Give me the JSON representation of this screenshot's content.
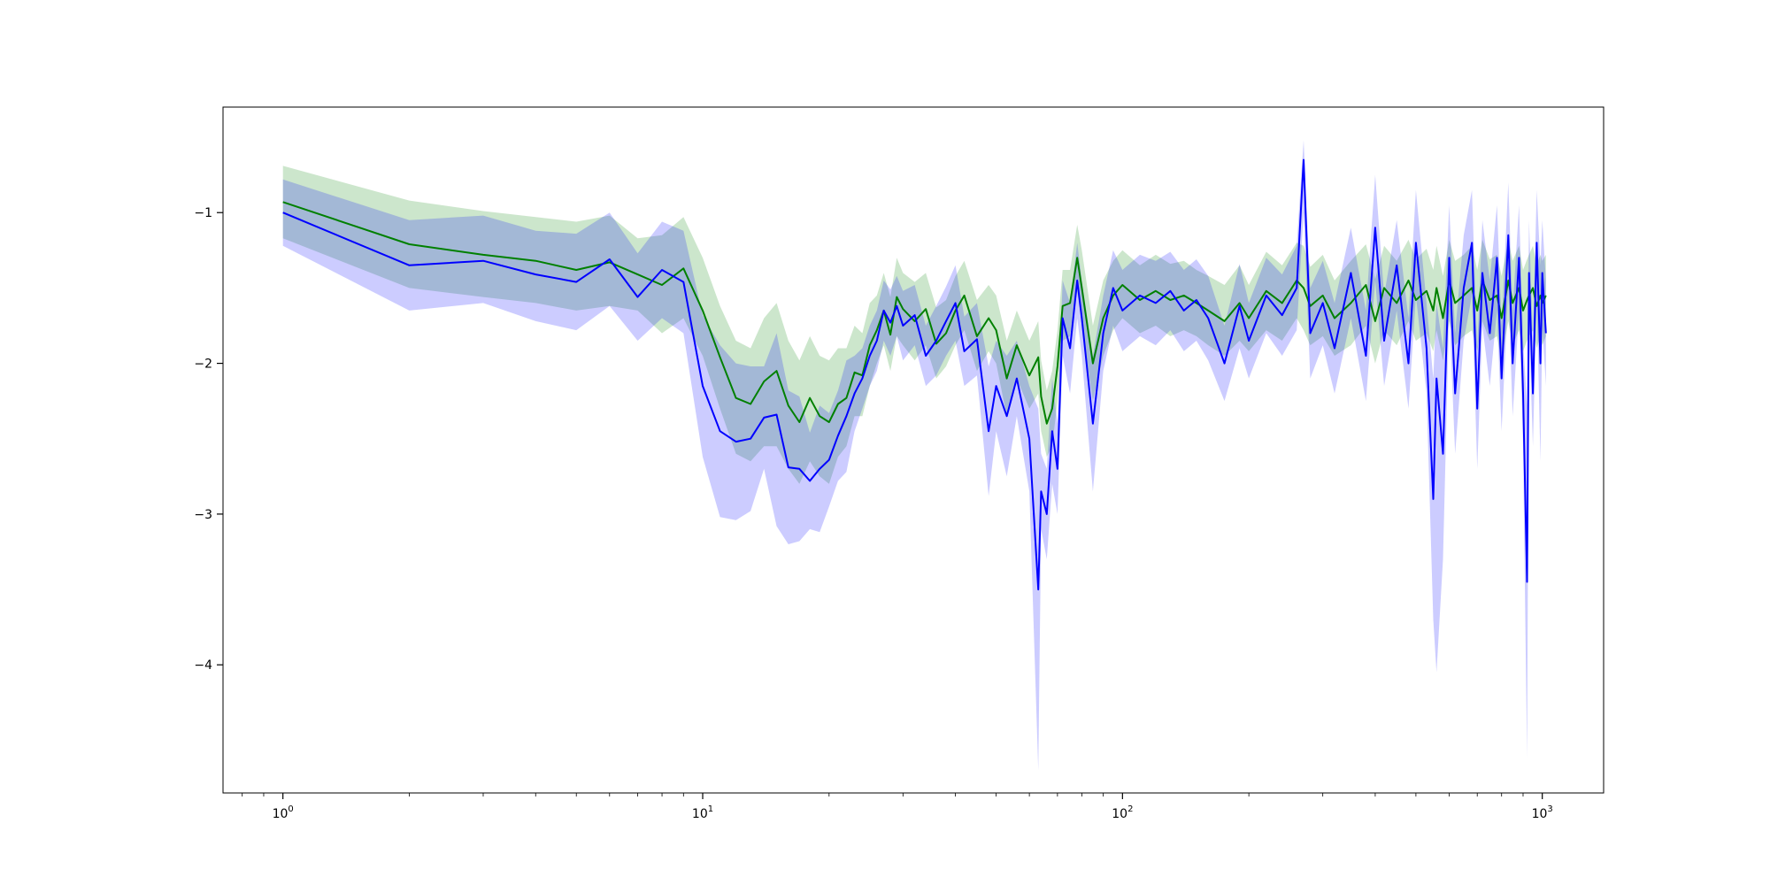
{
  "chart_data": {
    "type": "line",
    "title": "",
    "xlabel": "",
    "ylabel": "",
    "xscale": "log",
    "xlim": [
      0.72,
      1400
    ],
    "ylim": [
      -4.85,
      -0.3
    ],
    "grid": false,
    "legend": "none",
    "x_ticks": [
      {
        "value": 1,
        "base": "10",
        "exp": "0"
      },
      {
        "value": 10,
        "base": "10",
        "exp": "1"
      },
      {
        "value": 100,
        "base": "10",
        "exp": "2"
      },
      {
        "value": 1000,
        "base": "10",
        "exp": "3"
      }
    ],
    "y_ticks": [
      {
        "value": -1,
        "label": "−1"
      },
      {
        "value": -2,
        "label": "−2"
      },
      {
        "value": -3,
        "label": "−3"
      },
      {
        "value": -4,
        "label": "−4"
      }
    ],
    "x": [
      1,
      2,
      3,
      4,
      5,
      6,
      7,
      8,
      9,
      10,
      11,
      12,
      13,
      14,
      15,
      16,
      17,
      18,
      19,
      20,
      21,
      22,
      23,
      24,
      25,
      26,
      27,
      28,
      29,
      30,
      32,
      34,
      36,
      38,
      40,
      42,
      45,
      48,
      50,
      53,
      56,
      60,
      63,
      64,
      66,
      68,
      70,
      72,
      75,
      78,
      80,
      85,
      90,
      95,
      100,
      110,
      120,
      130,
      140,
      150,
      160,
      175,
      190,
      200,
      220,
      240,
      260,
      270,
      280,
      300,
      320,
      350,
      380,
      400,
      420,
      450,
      480,
      500,
      530,
      550,
      560,
      580,
      600,
      620,
      650,
      680,
      700,
      720,
      750,
      780,
      800,
      830,
      850,
      880,
      900,
      920,
      930,
      950,
      970,
      990,
      1000,
      1020
    ],
    "series": [
      {
        "color": "#008000",
        "band_color": "#008000",
        "values": [
          -0.93,
          -1.21,
          -1.28,
          -1.32,
          -1.38,
          -1.33,
          -1.41,
          -1.48,
          -1.37,
          -1.65,
          -1.96,
          -2.23,
          -2.27,
          -2.12,
          -2.05,
          -2.28,
          -2.39,
          -2.23,
          -2.35,
          -2.39,
          -2.27,
          -2.23,
          -2.06,
          -2.08,
          -1.88,
          -1.78,
          -1.65,
          -1.81,
          -1.56,
          -1.64,
          -1.72,
          -1.64,
          -1.87,
          -1.8,
          -1.65,
          -1.55,
          -1.82,
          -1.7,
          -1.78,
          -2.1,
          -1.88,
          -2.08,
          -1.96,
          -2.22,
          -2.4,
          -2.3,
          -2.02,
          -1.62,
          -1.6,
          -1.3,
          -1.5,
          -2.0,
          -1.7,
          -1.55,
          -1.48,
          -1.58,
          -1.52,
          -1.58,
          -1.55,
          -1.6,
          -1.65,
          -1.72,
          -1.6,
          -1.7,
          -1.52,
          -1.6,
          -1.45,
          -1.5,
          -1.62,
          -1.55,
          -1.7,
          -1.6,
          -1.48,
          -1.72,
          -1.5,
          -1.6,
          -1.45,
          -1.58,
          -1.52,
          -1.65,
          -1.5,
          -1.7,
          -1.45,
          -1.6,
          -1.55,
          -1.5,
          -1.65,
          -1.45,
          -1.58,
          -1.55,
          -1.7,
          -1.45,
          -1.6,
          -1.5,
          -1.65,
          -1.58,
          -1.55,
          -1.5,
          -1.62,
          -1.55,
          -1.6,
          -1.55
        ],
        "lower": [
          -1.17,
          -1.5,
          -1.56,
          -1.6,
          -1.65,
          -1.62,
          -1.65,
          -1.8,
          -1.7,
          -1.95,
          -2.3,
          -2.6,
          -2.65,
          -2.55,
          -2.55,
          -2.7,
          -2.8,
          -2.65,
          -2.75,
          -2.8,
          -2.62,
          -2.55,
          -2.35,
          -2.35,
          -2.15,
          -2.0,
          -1.88,
          -2.05,
          -1.82,
          -1.88,
          -1.98,
          -1.88,
          -2.1,
          -2.02,
          -1.88,
          -1.78,
          -2.05,
          -1.92,
          -2.0,
          -2.35,
          -2.1,
          -2.3,
          -2.2,
          -2.45,
          -2.62,
          -2.55,
          -2.25,
          -1.85,
          -1.82,
          -1.52,
          -1.75,
          -2.25,
          -1.95,
          -1.78,
          -1.7,
          -1.8,
          -1.75,
          -1.82,
          -1.78,
          -1.82,
          -1.88,
          -1.95,
          -1.85,
          -1.92,
          -1.78,
          -1.85,
          -1.7,
          -1.78,
          -1.88,
          -1.82,
          -1.95,
          -1.88,
          -1.75,
          -2.0,
          -1.78,
          -1.88,
          -1.72,
          -1.85,
          -1.8,
          -1.92,
          -1.78,
          -1.98,
          -1.72,
          -1.88,
          -1.82,
          -1.78,
          -1.92,
          -1.72,
          -1.85,
          -1.82,
          -1.98,
          -1.72,
          -1.88,
          -1.78,
          -1.92,
          -1.85,
          -1.82,
          -1.78,
          -1.9,
          -1.82,
          -1.88,
          -1.82
        ],
        "upper": [
          -0.69,
          -0.92,
          -0.99,
          -1.03,
          -1.06,
          -1.02,
          -1.17,
          -1.15,
          -1.03,
          -1.3,
          -1.62,
          -1.85,
          -1.9,
          -1.7,
          -1.6,
          -1.85,
          -1.98,
          -1.82,
          -1.95,
          -1.98,
          -1.9,
          -1.9,
          -1.75,
          -1.8,
          -1.6,
          -1.55,
          -1.4,
          -1.56,
          -1.3,
          -1.4,
          -1.46,
          -1.4,
          -1.63,
          -1.58,
          -1.42,
          -1.32,
          -1.58,
          -1.48,
          -1.55,
          -1.85,
          -1.65,
          -1.85,
          -1.72,
          -1.98,
          -2.18,
          -2.05,
          -1.78,
          -1.38,
          -1.38,
          -1.08,
          -1.25,
          -1.75,
          -1.45,
          -1.32,
          -1.25,
          -1.35,
          -1.28,
          -1.34,
          -1.32,
          -1.38,
          -1.42,
          -1.48,
          -1.35,
          -1.48,
          -1.26,
          -1.35,
          -1.2,
          -1.22,
          -1.36,
          -1.28,
          -1.45,
          -1.32,
          -1.21,
          -1.44,
          -1.22,
          -1.32,
          -1.18,
          -1.31,
          -1.24,
          -1.38,
          -1.22,
          -1.42,
          -1.18,
          -1.32,
          -1.28,
          -1.22,
          -1.38,
          -1.18,
          -1.31,
          -1.28,
          -1.42,
          -1.18,
          -1.32,
          -1.22,
          -1.38,
          -1.31,
          -1.28,
          -1.22,
          -1.34,
          -1.28,
          -1.32,
          -1.28
        ]
      },
      {
        "color": "#0000ff",
        "band_color": "#0000ff",
        "values": [
          -1.0,
          -1.35,
          -1.32,
          -1.41,
          -1.46,
          -1.31,
          -1.56,
          -1.38,
          -1.46,
          -2.15,
          -2.45,
          -2.52,
          -2.5,
          -2.36,
          -2.34,
          -2.69,
          -2.7,
          -2.78,
          -2.7,
          -2.64,
          -2.48,
          -2.35,
          -2.2,
          -2.1,
          -1.95,
          -1.85,
          -1.65,
          -1.73,
          -1.62,
          -1.75,
          -1.68,
          -1.95,
          -1.85,
          -1.72,
          -1.6,
          -1.92,
          -1.84,
          -2.45,
          -2.15,
          -2.35,
          -2.1,
          -2.5,
          -3.5,
          -2.85,
          -3.0,
          -2.45,
          -2.7,
          -1.7,
          -1.9,
          -1.45,
          -1.7,
          -2.4,
          -1.8,
          -1.5,
          -1.65,
          -1.55,
          -1.6,
          -1.52,
          -1.65,
          -1.58,
          -1.7,
          -2.0,
          -1.62,
          -1.85,
          -1.55,
          -1.68,
          -1.5,
          -0.65,
          -1.8,
          -1.6,
          -1.9,
          -1.4,
          -1.95,
          -1.1,
          -1.85,
          -1.35,
          -2.0,
          -1.2,
          -1.9,
          -2.9,
          -2.1,
          -2.6,
          -1.3,
          -2.2,
          -1.5,
          -1.2,
          -2.3,
          -1.4,
          -1.8,
          -1.3,
          -2.1,
          -1.15,
          -2.0,
          -1.3,
          -2.2,
          -3.45,
          -1.4,
          -2.2,
          -1.2,
          -2.0,
          -1.4,
          -1.8
        ],
        "lower": [
          -1.22,
          -1.65,
          -1.6,
          -1.72,
          -1.78,
          -1.62,
          -1.85,
          -1.7,
          -1.8,
          -2.62,
          -3.02,
          -3.04,
          -2.98,
          -2.7,
          -3.08,
          -3.2,
          -3.18,
          -3.1,
          -3.12,
          -2.95,
          -2.78,
          -2.72,
          -2.45,
          -2.3,
          -2.15,
          -2.05,
          -1.85,
          -1.95,
          -1.82,
          -1.98,
          -1.88,
          -2.15,
          -2.08,
          -1.95,
          -1.85,
          -2.15,
          -2.08,
          -2.88,
          -2.45,
          -2.75,
          -2.35,
          -2.85,
          -4.7,
          -3.1,
          -3.3,
          -2.8,
          -3.0,
          -1.95,
          -2.2,
          -1.7,
          -1.95,
          -2.85,
          -2.05,
          -1.75,
          -1.92,
          -1.82,
          -1.88,
          -1.78,
          -1.92,
          -1.85,
          -1.98,
          -2.25,
          -1.9,
          -2.1,
          -1.8,
          -1.95,
          -1.78,
          -1.0,
          -2.1,
          -1.88,
          -2.2,
          -1.7,
          -2.25,
          -1.45,
          -2.15,
          -1.65,
          -2.3,
          -1.55,
          -2.2,
          -3.7,
          -4.05,
          -3.3,
          -1.65,
          -2.6,
          -1.85,
          -1.55,
          -2.7,
          -1.75,
          -2.15,
          -1.65,
          -2.45,
          -1.5,
          -2.35,
          -1.65,
          -2.55,
          -4.62,
          -1.75,
          -2.55,
          -1.55,
          -2.65,
          -1.75,
          -2.15
        ],
        "upper": [
          -0.78,
          -1.05,
          -1.02,
          -1.12,
          -1.14,
          -1.0,
          -1.27,
          -1.06,
          -1.12,
          -1.68,
          -1.88,
          -2.0,
          -2.02,
          -2.02,
          -1.8,
          -2.18,
          -2.22,
          -2.46,
          -2.28,
          -2.33,
          -2.18,
          -1.98,
          -1.95,
          -1.9,
          -1.75,
          -1.65,
          -1.45,
          -1.51,
          -1.42,
          -1.52,
          -1.48,
          -1.75,
          -1.62,
          -1.49,
          -1.35,
          -1.69,
          -1.6,
          -2.02,
          -1.85,
          -1.95,
          -1.85,
          -2.15,
          -2.3,
          -2.6,
          -2.7,
          -2.1,
          -2.4,
          -1.45,
          -1.6,
          -1.2,
          -1.45,
          -1.95,
          -1.55,
          -1.25,
          -1.38,
          -1.28,
          -1.32,
          -1.26,
          -1.38,
          -1.31,
          -1.42,
          -1.75,
          -1.34,
          -1.6,
          -1.3,
          -1.41,
          -1.22,
          -0.52,
          -1.5,
          -1.32,
          -1.6,
          -1.1,
          -1.65,
          -0.75,
          -1.55,
          -1.05,
          -1.7,
          -0.85,
          -1.6,
          -2.1,
          -1.6,
          -1.9,
          -0.95,
          -1.8,
          -1.15,
          -0.85,
          -1.9,
          -1.05,
          -1.45,
          -0.95,
          -1.75,
          -0.8,
          -1.65,
          -0.95,
          -1.85,
          -2.28,
          -1.05,
          -1.85,
          -0.85,
          -1.35,
          -1.05,
          -1.45
        ]
      }
    ]
  }
}
